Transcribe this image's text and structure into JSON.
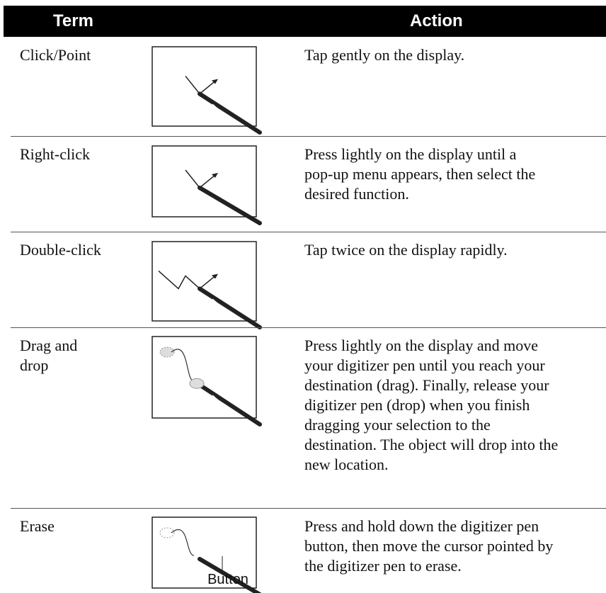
{
  "table": {
    "header": [
      "Term",
      "Action"
    ],
    "rows": [
      {
        "term": [
          "Click/Point"
        ],
        "action": [
          "Tap gently on the display."
        ]
      },
      {
        "term": [
          "Right-click"
        ],
        "action": [
          "Press lightly on the display until a",
          "pop-up menu appears, then select the",
          "desired function."
        ]
      },
      {
        "term": [
          "Double-click"
        ],
        "action": [
          "Tap twice on the display rapidly."
        ]
      },
      {
        "term": [
          "Drag and",
          "drop"
        ],
        "action": [
          "Press lightly on the display and move",
          "your digitizer pen until you reach your",
          "destination (drag). Finally, release your",
          "digitizer pen (drop) when you finish",
          "dragging your selection to the",
          "destination. The object will drop into the",
          "new location."
        ]
      },
      {
        "term": [
          "Erase"
        ],
        "action": [
          "Press and hold down the digitizer pen",
          "button, then move the cursor pointed by",
          "the digitizer pen to erase."
        ],
        "image_label": "Button"
      }
    ]
  }
}
